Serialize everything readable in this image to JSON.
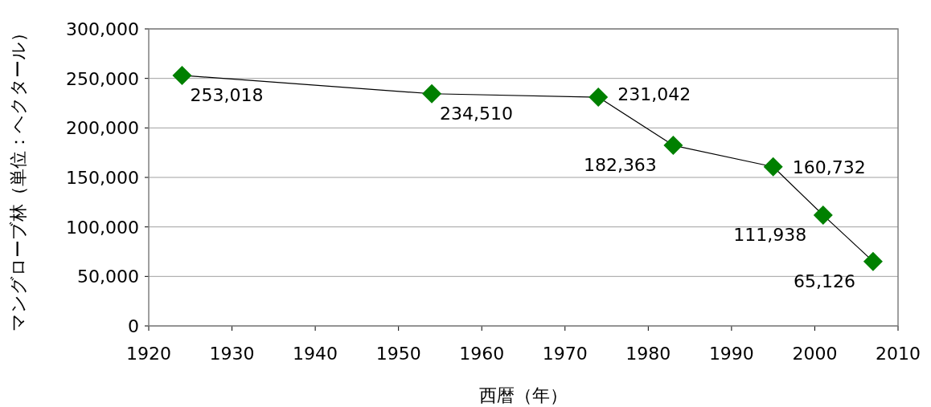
{
  "chart_data": {
    "type": "line",
    "xlabel": "西暦（年）",
    "ylabel": "マングローブ林（単位：ヘクタール）",
    "x": [
      1924,
      1954,
      1974,
      1983,
      1995,
      2001,
      2007
    ],
    "series": [
      {
        "color": "#008000",
        "values": [
          253018,
          234510,
          231042,
          182363,
          160732,
          111938,
          65126
        ],
        "value_labels": [
          "253,018",
          "234,510",
          "231,042",
          "182,363",
          "160,732",
          "111,938",
          "65,126"
        ]
      }
    ],
    "xlim": [
      1920,
      2010
    ],
    "xticks": [
      1920,
      1930,
      1940,
      1950,
      1960,
      1970,
      1980,
      1990,
      2000,
      2010
    ],
    "ylim": [
      0,
      300000
    ],
    "yticks": [
      {
        "value": 0,
        "label": "0"
      },
      {
        "value": 50000,
        "label": "50,000"
      },
      {
        "value": 100000,
        "label": "100,000"
      },
      {
        "value": 150000,
        "label": "150,000"
      },
      {
        "value": 200000,
        "label": "200,000"
      },
      {
        "value": 250000,
        "label": "250,000"
      },
      {
        "value": 300000,
        "label": "300,000"
      }
    ],
    "grid": "y",
    "marker": "diamond",
    "line_style": "solid"
  }
}
